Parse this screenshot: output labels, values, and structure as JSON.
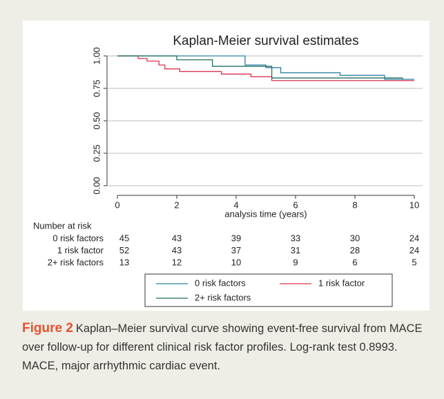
{
  "chart_data": {
    "type": "step",
    "title": "Kaplan-Meier survival estimates",
    "xlabel": "analysis time (years)",
    "xlim": [
      0,
      10
    ],
    "xticks": [
      0,
      2,
      4,
      6,
      8,
      10
    ],
    "ylim": [
      0,
      1
    ],
    "yticks": [
      {
        "value": 0,
        "label": "0.00"
      },
      {
        "value": 0.25,
        "label": "0.25"
      },
      {
        "value": 0.5,
        "label": "0.50"
      },
      {
        "value": 0.75,
        "label": "0.75"
      },
      {
        "value": 1,
        "label": "1.00"
      }
    ],
    "grid": true,
    "series": [
      {
        "name": "0 risk factors",
        "color": "#2b7fa3",
        "x": [
          0,
          4.3,
          5.0,
          5.5,
          7.5,
          9.0,
          10
        ],
        "values": [
          1.0,
          0.93,
          0.91,
          0.87,
          0.85,
          0.82,
          0.82
        ]
      },
      {
        "name": "1 risk factor",
        "color": "#d9344c",
        "x": [
          0,
          0.7,
          1.0,
          1.4,
          1.6,
          2.1,
          3.5,
          4.5,
          5.2,
          10
        ],
        "values": [
          1.0,
          0.98,
          0.96,
          0.93,
          0.9,
          0.88,
          0.86,
          0.84,
          0.81,
          0.81
        ]
      },
      {
        "name": "2+ risk factors",
        "color": "#1f6e5e",
        "x": [
          0,
          2.0,
          3.2,
          5.2,
          9.6
        ],
        "values": [
          1.0,
          0.97,
          0.92,
          0.83,
          0.82
        ]
      }
    ],
    "risk_table": {
      "title": "Number at risk",
      "rows": [
        {
          "label": "0 risk factors",
          "values": [
            45,
            43,
            39,
            33,
            30,
            24
          ]
        },
        {
          "label": "1 risk factor",
          "values": [
            52,
            43,
            37,
            31,
            28,
            24
          ]
        },
        {
          "label": "2+ risk factors",
          "values": [
            13,
            12,
            10,
            9,
            6,
            5
          ]
        }
      ]
    }
  },
  "caption": {
    "label": "Figure 2",
    "text": "Kaplan–Meier survival curve showing event-free survival from MACE over follow-up for different clinical risk factor profiles. Log-rank test 0.8993. MACE, major arrhythmic cardiac event."
  }
}
